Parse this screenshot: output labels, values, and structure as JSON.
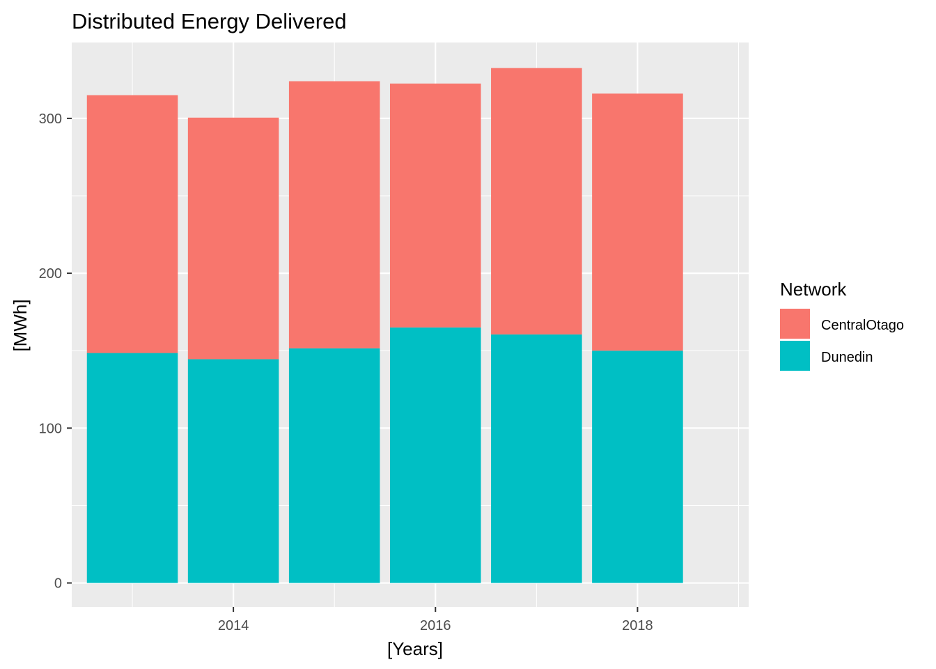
{
  "chart_data": {
    "type": "bar",
    "stacked": true,
    "title": "Distributed Energy Delivered",
    "xlabel": "[Years]",
    "ylabel": "[MWh]",
    "categories": [
      2013,
      2014,
      2015,
      2016,
      2017,
      2018
    ],
    "x_tick_labels": [
      "2014",
      "2016",
      "2018"
    ],
    "y_tick_labels": [
      "0",
      "100",
      "200",
      "300"
    ],
    "y_ticks": [
      0,
      100,
      200,
      300
    ],
    "xlim": [
      2012.4,
      2019.1
    ],
    "ylim": [
      -15.5,
      349
    ],
    "series": [
      {
        "name": "Dunedin",
        "color": "#00BFC4",
        "values": [
          148.5,
          144.5,
          151.5,
          165,
          160.5,
          150
        ]
      },
      {
        "name": "CentralOtago",
        "color": "#F8766D",
        "values": [
          166.5,
          156,
          172.5,
          157.5,
          172,
          166
        ]
      }
    ],
    "legend": {
      "title": "Network",
      "position": "right",
      "entries": [
        {
          "label": "CentralOtago",
          "color": "#F8766D"
        },
        {
          "label": "Dunedin",
          "color": "#00BFC4"
        }
      ]
    },
    "panel_background": "#EBEBEB",
    "grid": true
  }
}
